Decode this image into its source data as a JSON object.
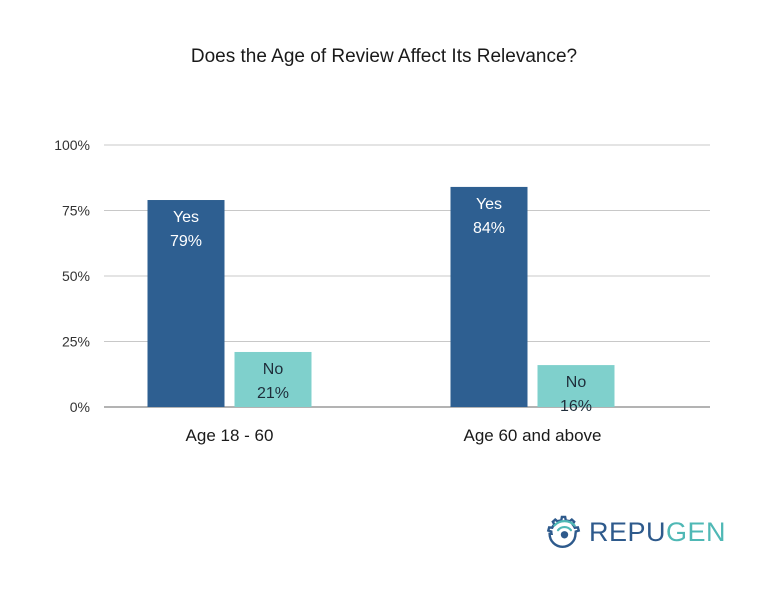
{
  "chart_data": {
    "type": "bar",
    "title": "Does the Age of Review Affect Its Relevance?",
    "categories": [
      "Age 18 - 60",
      "Age 60 and above"
    ],
    "series": [
      {
        "name": "Yes",
        "values": [
          79,
          84
        ],
        "labels": [
          "79%",
          "84%"
        ],
        "color": "#2e5f91"
      },
      {
        "name": "No",
        "values": [
          21,
          16
        ],
        "labels": [
          "21%",
          "16%"
        ],
        "color": "#7fd0cc"
      }
    ],
    "y_ticks": [
      {
        "value": 0,
        "label": "0%"
      },
      {
        "value": 25,
        "label": "25%"
      },
      {
        "value": 50,
        "label": "50%"
      },
      {
        "value": 75,
        "label": "75%"
      },
      {
        "value": 100,
        "label": "100%"
      }
    ],
    "ylim": [
      0,
      100
    ],
    "grid": true,
    "legend": "none"
  },
  "logo": {
    "text_part1": "REPU",
    "text_part2": "GEN",
    "icon": "gear-wifi-icon"
  }
}
